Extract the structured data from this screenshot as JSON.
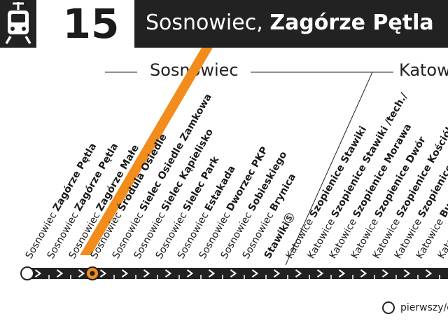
{
  "header": {
    "line_number": "15",
    "destination_city": "Sosnowiec,",
    "destination_stop": "Zagórze Pętla",
    "destination_arrow": "»"
  },
  "zones": [
    {
      "name": "Sosnowiec"
    },
    {
      "name": "Katow"
    }
  ],
  "stops": [
    {
      "city": "Sosnowiec",
      "name": "Zagórze Pętla",
      "terminus": true
    },
    {
      "city": "Sosnowiec",
      "name": "Zagórze Pętla"
    },
    {
      "city": "Sosnowiec",
      "name": "Zagórze Małe"
    },
    {
      "city": "Sosnowiec",
      "name": "Środula Osiedle",
      "current": true
    },
    {
      "city": "Sosnowiec",
      "name": "Sielec Osiedle Zamkowa"
    },
    {
      "city": "Sosnowiec",
      "name": "Sielec Kąpielisko"
    },
    {
      "city": "Sosnowiec",
      "name": "Sielec Park"
    },
    {
      "city": "Sosnowiec",
      "name": "Estakada"
    },
    {
      "city": "Sosnowiec",
      "name": "Dworzec PKP"
    },
    {
      "city": "Sosnowiec",
      "name": "Sobieskiego"
    },
    {
      "city": "Sosnowiec",
      "name": "Brynica"
    },
    {
      "city": "",
      "name": "Stawiki",
      "suffix": "Ⓢ"
    },
    {
      "city": "Katowice",
      "name": "Szopienice Stawiki"
    },
    {
      "city": "Katowice",
      "name": "Szopienice Stawiki /tech./"
    },
    {
      "city": "Katowice",
      "name": "Szopienice Morawa"
    },
    {
      "city": "Katowice",
      "name": "Szopienice Dwór"
    },
    {
      "city": "Katowice",
      "name": "Szopienice Kościół"
    },
    {
      "city": "Katowice",
      "name": "Szopienice P"
    },
    {
      "city": "Katowice",
      "name": "Bu"
    },
    {
      "city": "Katowice",
      "name": ""
    }
  ],
  "legend": {
    "label": "pierwszy/o"
  },
  "colors": {
    "line_bar": "#222222",
    "highlight": "#f28c1c",
    "current_stop": "#f28c1c"
  },
  "icons": {
    "tram": "tram-icon"
  }
}
